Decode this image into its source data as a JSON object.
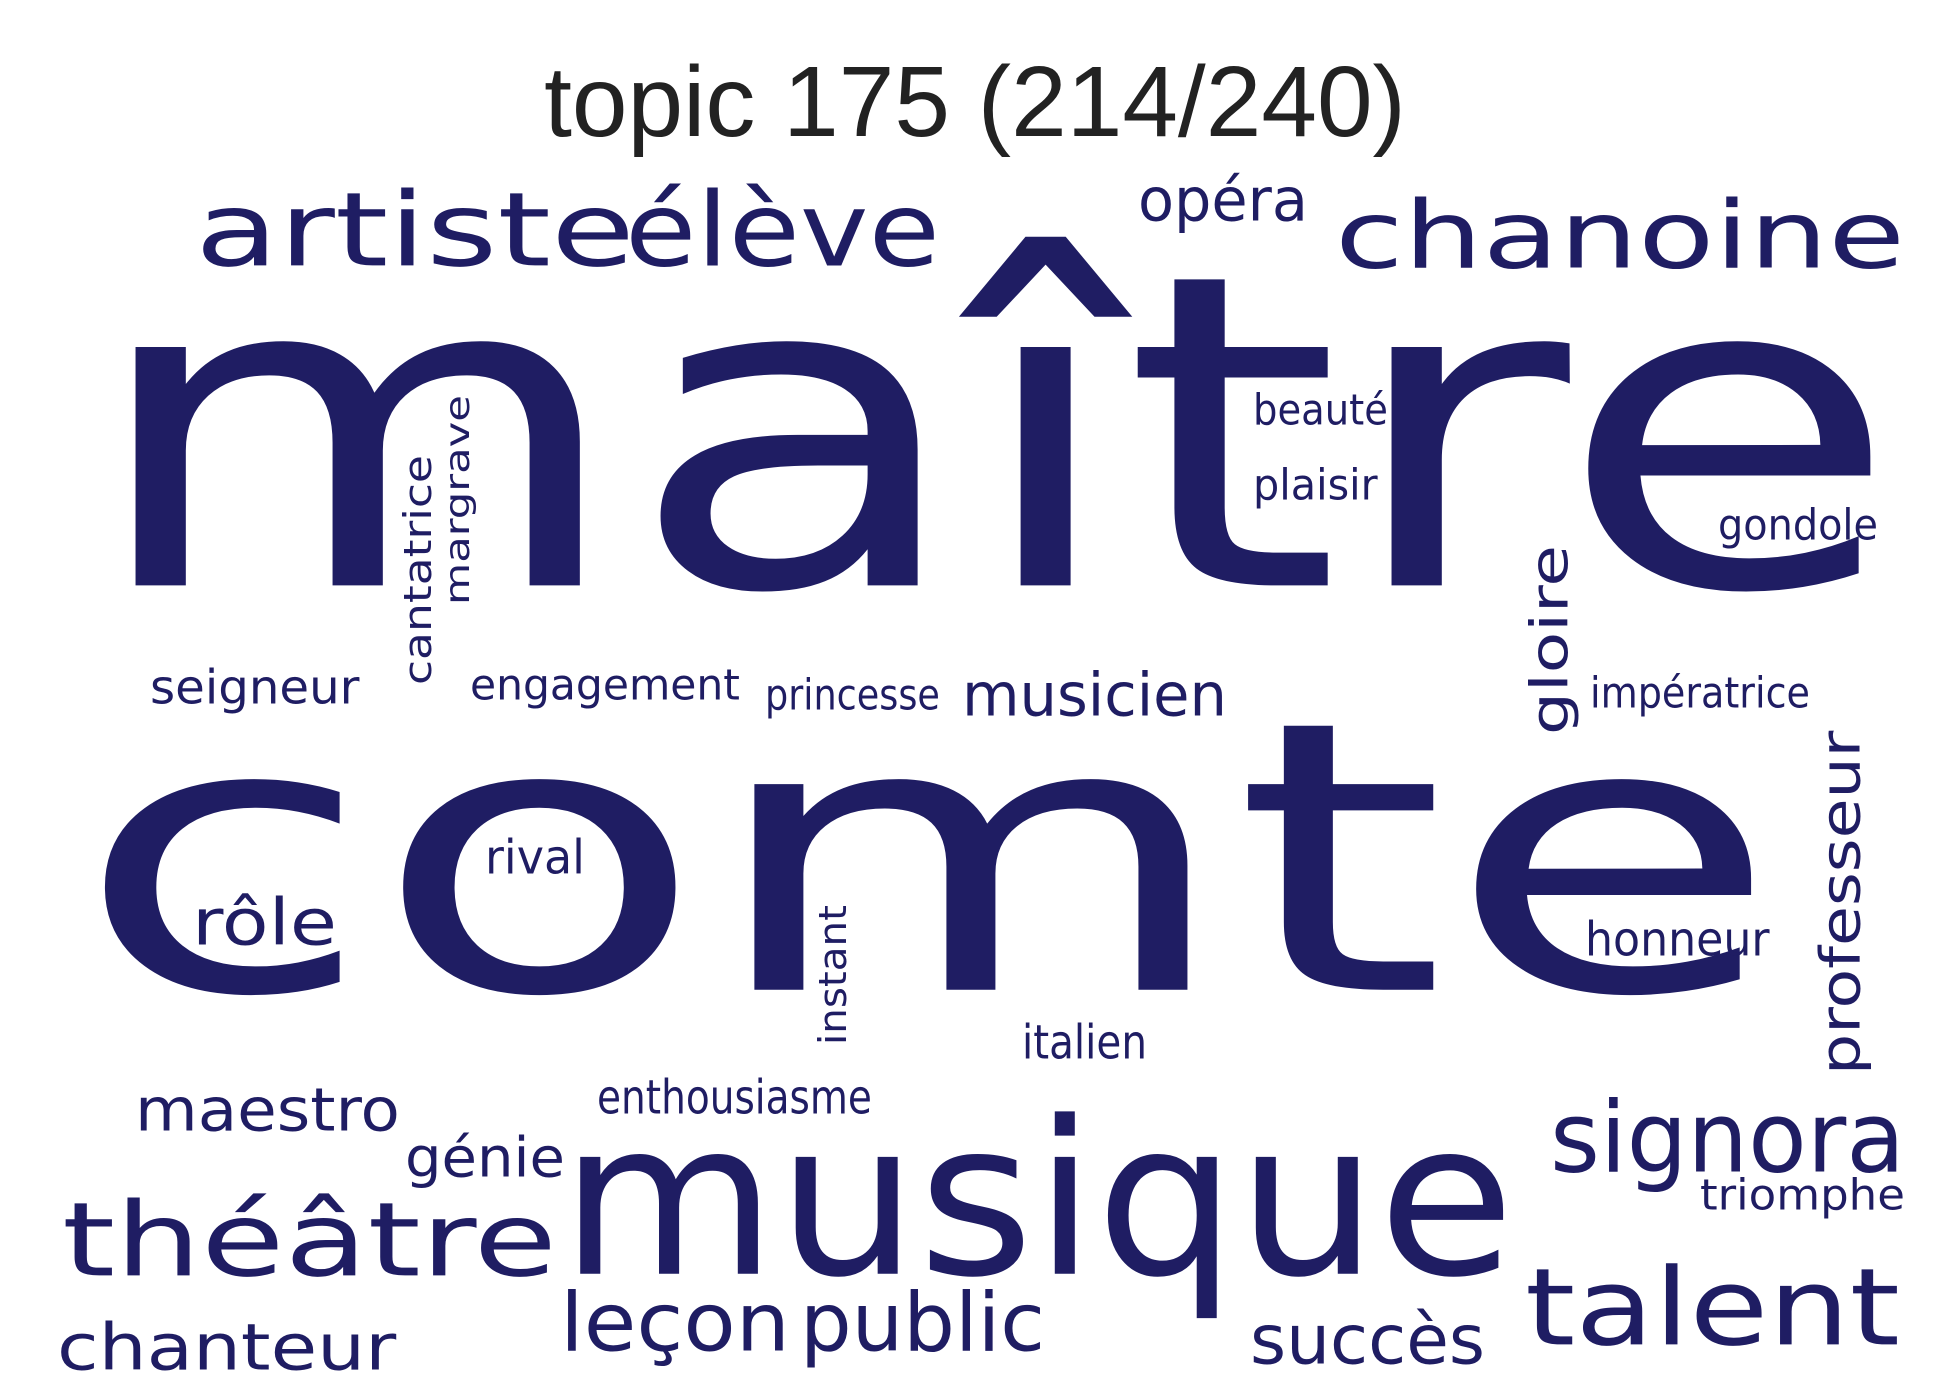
{
  "title": "topic 175 (214/240)",
  "color": "#1f1d63",
  "words": [
    {
      "text": "maître"
    },
    {
      "text": "comte"
    },
    {
      "text": "musique"
    },
    {
      "text": "artiste"
    },
    {
      "text": "élève"
    },
    {
      "text": "chanoine"
    },
    {
      "text": "opéra"
    },
    {
      "text": "théâtre"
    },
    {
      "text": "talent"
    },
    {
      "text": "signora"
    },
    {
      "text": "chanteur"
    },
    {
      "text": "leçon"
    },
    {
      "text": "public"
    },
    {
      "text": "succès"
    },
    {
      "text": "maestro"
    },
    {
      "text": "génie"
    },
    {
      "text": "rôle"
    },
    {
      "text": "musicien"
    },
    {
      "text": "seigneur"
    },
    {
      "text": "engagement"
    },
    {
      "text": "princesse"
    },
    {
      "text": "impératrice"
    },
    {
      "text": "gondole"
    },
    {
      "text": "beauté"
    },
    {
      "text": "plaisir"
    },
    {
      "text": "gloire"
    },
    {
      "text": "cantatrice"
    },
    {
      "text": "margrave"
    },
    {
      "text": "professeur"
    },
    {
      "text": "honneur"
    },
    {
      "text": "rival"
    },
    {
      "text": "instant"
    },
    {
      "text": "italien"
    },
    {
      "text": "enthousiasme"
    },
    {
      "text": "triomphe"
    }
  ]
}
